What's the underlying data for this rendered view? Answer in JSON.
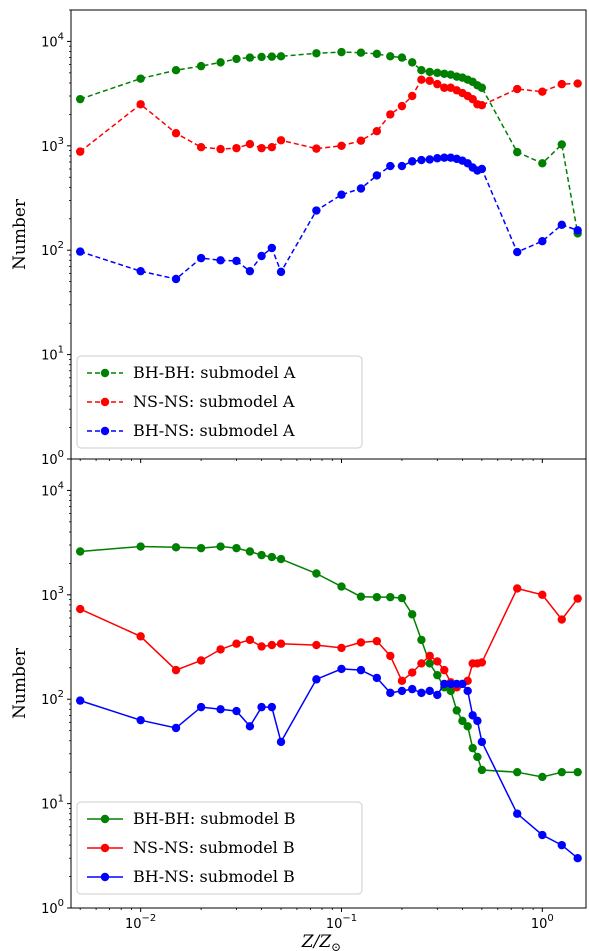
{
  "chart_data": [
    {
      "type": "line",
      "panel": "top",
      "xscale": "log",
      "yscale": "log",
      "xlim": [
        0.0045,
        1.65
      ],
      "ylim": [
        1,
        20000
      ],
      "ylabel": "Number",
      "xticks": [
        0.01,
        0.1,
        1
      ],
      "xtick_labels": [
        "10^-2",
        "10^-1",
        "10^0"
      ],
      "yticks": [
        1,
        10,
        100,
        1000,
        10000
      ],
      "ytick_labels": [
        "10^0",
        "10^1",
        "10^2",
        "10^3",
        "10^4"
      ],
      "legend_position": "lower-left",
      "line_style": "dashed",
      "series": [
        {
          "name": "BH-BH: submodel A",
          "color": "#008000",
          "x": [
            0.005,
            0.01,
            0.015,
            0.02,
            0.025,
            0.03,
            0.035,
            0.04,
            0.045,
            0.05,
            0.075,
            0.1,
            0.125,
            0.15,
            0.175,
            0.2,
            0.225,
            0.25,
            0.275,
            0.3,
            0.325,
            0.35,
            0.375,
            0.4,
            0.425,
            0.45,
            0.475,
            0.5,
            0.75,
            1.0,
            1.25,
            1.5
          ],
          "y": [
            2800,
            4400,
            5300,
            5800,
            6300,
            6800,
            7000,
            7100,
            7150,
            7200,
            7700,
            7900,
            7800,
            7600,
            7200,
            7000,
            6300,
            5300,
            5100,
            5000,
            4900,
            4800,
            4600,
            4500,
            4300,
            4100,
            3800,
            3600,
            870,
            680,
            1030,
            145
          ]
        },
        {
          "name": "NS-NS: submodel A",
          "color": "#ff0000",
          "x": [
            0.005,
            0.01,
            0.015,
            0.02,
            0.025,
            0.03,
            0.035,
            0.04,
            0.045,
            0.05,
            0.075,
            0.1,
            0.125,
            0.15,
            0.175,
            0.2,
            0.225,
            0.25,
            0.275,
            0.3,
            0.325,
            0.35,
            0.375,
            0.4,
            0.425,
            0.45,
            0.475,
            0.5,
            0.75,
            1.0,
            1.25,
            1.5
          ],
          "y": [
            880,
            2500,
            1320,
            970,
            930,
            950,
            1040,
            950,
            970,
            1130,
            940,
            1000,
            1120,
            1380,
            2000,
            2400,
            3000,
            4300,
            4200,
            3900,
            3600,
            3600,
            3400,
            3200,
            3000,
            2800,
            2500,
            2450,
            3500,
            3300,
            3900,
            3950
          ]
        },
        {
          "name": "BH-NS: submodel A",
          "color": "#0000ff",
          "x": [
            0.005,
            0.01,
            0.015,
            0.02,
            0.025,
            0.03,
            0.035,
            0.04,
            0.045,
            0.05,
            0.075,
            0.1,
            0.125,
            0.15,
            0.175,
            0.2,
            0.225,
            0.25,
            0.275,
            0.3,
            0.325,
            0.35,
            0.375,
            0.4,
            0.425,
            0.45,
            0.475,
            0.5,
            0.75,
            1.0,
            1.25,
            1.5
          ],
          "y": [
            97,
            63,
            53,
            84,
            80,
            79,
            63,
            88,
            105,
            62,
            240,
            340,
            390,
            520,
            640,
            640,
            710,
            730,
            740,
            760,
            770,
            770,
            750,
            720,
            680,
            620,
            580,
            600,
            96,
            122,
            175,
            155
          ]
        }
      ]
    },
    {
      "type": "line",
      "panel": "bottom",
      "xscale": "log",
      "yscale": "log",
      "xlim": [
        0.0045,
        1.65
      ],
      "ylim": [
        1,
        20000
      ],
      "xlabel": "Z/Z_sun",
      "ylabel": "Number",
      "xticks": [
        0.01,
        0.1,
        1
      ],
      "xtick_labels": [
        "10^-2",
        "10^-1",
        "10^0"
      ],
      "yticks": [
        1,
        10,
        100,
        1000,
        10000
      ],
      "ytick_labels": [
        "10^0",
        "10^1",
        "10^2",
        "10^3",
        "10^4"
      ],
      "legend_position": "lower-left",
      "line_style": "solid",
      "series": [
        {
          "name": "BH-BH: submodel B",
          "color": "#008000",
          "x": [
            0.005,
            0.01,
            0.015,
            0.02,
            0.025,
            0.03,
            0.035,
            0.04,
            0.045,
            0.05,
            0.075,
            0.1,
            0.125,
            0.15,
            0.175,
            0.2,
            0.225,
            0.25,
            0.275,
            0.3,
            0.325,
            0.35,
            0.375,
            0.4,
            0.425,
            0.45,
            0.475,
            0.5,
            0.75,
            1.0,
            1.25,
            1.5
          ],
          "y": [
            2600,
            2900,
            2850,
            2800,
            2900,
            2800,
            2600,
            2400,
            2300,
            2200,
            1600,
            1200,
            960,
            950,
            950,
            930,
            650,
            370,
            220,
            170,
            130,
            120,
            78,
            62,
            55,
            34,
            28,
            21,
            20,
            18,
            20,
            20
          ]
        },
        {
          "name": "NS-NS: submodel B",
          "color": "#ff0000",
          "x": [
            0.005,
            0.01,
            0.015,
            0.02,
            0.025,
            0.03,
            0.035,
            0.04,
            0.045,
            0.05,
            0.075,
            0.1,
            0.125,
            0.15,
            0.175,
            0.2,
            0.225,
            0.25,
            0.275,
            0.3,
            0.325,
            0.35,
            0.375,
            0.4,
            0.425,
            0.45,
            0.475,
            0.5,
            0.75,
            1.0,
            1.25,
            1.5
          ],
          "y": [
            730,
            400,
            190,
            235,
            300,
            340,
            370,
            320,
            330,
            340,
            330,
            310,
            350,
            360,
            260,
            150,
            180,
            220,
            260,
            230,
            190,
            145,
            130,
            140,
            150,
            220,
            220,
            225,
            1150,
            1000,
            580,
            920
          ]
        },
        {
          "name": "BH-NS: submodel B",
          "color": "#0000ff",
          "x": [
            0.005,
            0.01,
            0.015,
            0.02,
            0.025,
            0.03,
            0.035,
            0.04,
            0.045,
            0.05,
            0.075,
            0.1,
            0.125,
            0.15,
            0.175,
            0.2,
            0.225,
            0.25,
            0.275,
            0.3,
            0.325,
            0.35,
            0.375,
            0.4,
            0.425,
            0.45,
            0.475,
            0.5,
            0.75,
            1.0,
            1.25,
            1.5
          ],
          "y": [
            97,
            63,
            53,
            84,
            80,
            77,
            55,
            84,
            84,
            39,
            155,
            195,
            190,
            160,
            115,
            120,
            125,
            115,
            120,
            110,
            140,
            140,
            140,
            140,
            120,
            70,
            62,
            39,
            8,
            5,
            4,
            3
          ]
        }
      ]
    }
  ]
}
